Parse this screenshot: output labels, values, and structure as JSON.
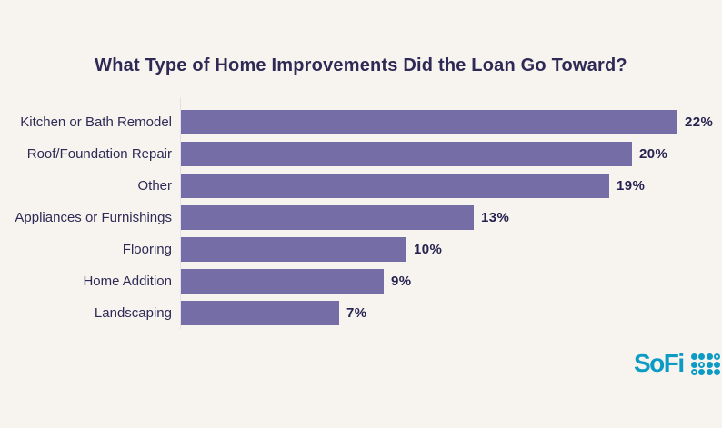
{
  "chart_data": {
    "type": "bar",
    "orientation": "horizontal",
    "title": "What Type of Home Improvements Did the Loan Go Toward?",
    "categories": [
      "Kitchen or Bath Remodel",
      "Roof/Foundation Repair",
      "Other",
      "Appliances or Furnishings",
      "Flooring",
      "Home Addition",
      "Landscaping"
    ],
    "values": [
      22,
      20,
      19,
      13,
      10,
      9,
      7
    ],
    "value_suffix": "%",
    "xlim": [
      0,
      22
    ],
    "grid": false,
    "legend": "none",
    "data_labels": "end-of-bar"
  },
  "footer": {
    "brand_wordmark": "SoFi",
    "logo_mark_pattern": [
      [
        1,
        1,
        1,
        0
      ],
      [
        1,
        0,
        1,
        1
      ],
      [
        0,
        1,
        1,
        1
      ]
    ]
  },
  "colors": {
    "background": "#F7F4EF",
    "bar": "#746DA6",
    "text": "#2E2A55",
    "value-text": "#262250",
    "axis-line": "#E3E0E8",
    "brand-teal": "#0C9BC4"
  }
}
